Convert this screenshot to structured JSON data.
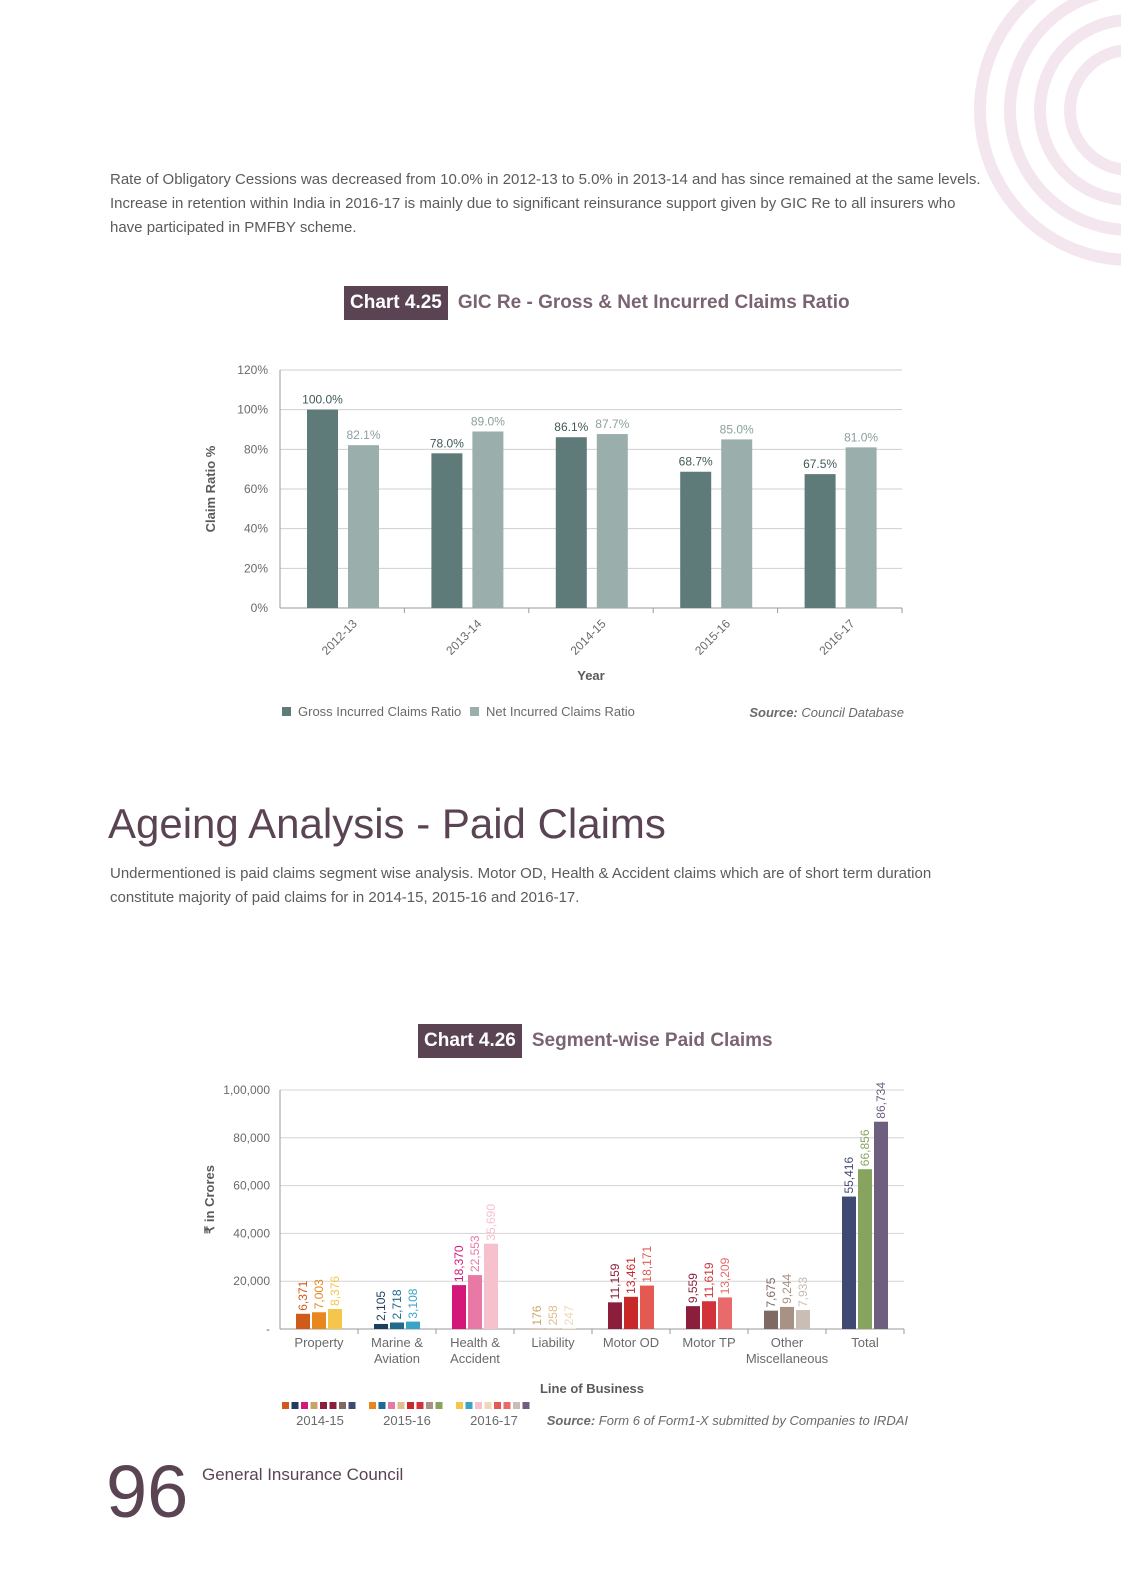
{
  "intro": {
    "line1": "Rate of Obligatory Cessions was decreased from 10.0% in 2012-13 to 5.0% in 2013-14 and has since remained at the same levels.",
    "line2": "Increase in retention within India in 2016-17 is mainly due to significant reinsurance support given by GIC Re to all insurers who",
    "line3": "have participated in PMFBY scheme."
  },
  "chart1": {
    "tag": "Chart 4.25",
    "name": "GIC Re - Gross & Net Incurred Claims Ratio",
    "source_label": "Source:",
    "source_text": "Council Database"
  },
  "section": {
    "title": "Ageing Analysis - Paid Claims",
    "line1": "Undermentioned is paid claims segment wise analysis. Motor OD, Health & Accident claims which are of short term duration",
    "line2": "constitute majority of paid claims for in 2014-15, 2015-16 and 2016-17."
  },
  "chart2": {
    "tag": "Chart 4.26",
    "name": "Segment-wise Paid Claims",
    "source_label": "Source:",
    "source_text": "Form 6 of Form1-X submitted by Companies to IRDAI"
  },
  "footer": {
    "page_number": "96",
    "publisher": "General Insurance Council"
  },
  "chart_data": [
    {
      "type": "bar",
      "title": "GIC Re - Gross & Net Incurred Claims Ratio",
      "xlabel": "Year",
      "ylabel": "Claim Ratio %",
      "ylim": [
        0,
        120
      ],
      "yticks": [
        "0%",
        "20%",
        "40%",
        "60%",
        "80%",
        "100%",
        "120%"
      ],
      "categories": [
        "2012-13",
        "2013-14",
        "2014-15",
        "2015-16",
        "2016-17"
      ],
      "series": [
        {
          "name": "Gross Incurred Claims Ratio",
          "color": "#5e7b7a",
          "values": [
            100.0,
            78.0,
            86.1,
            68.7,
            67.5
          ],
          "labels": [
            "100.0%",
            "78.0%",
            "86.1%",
            "68.7%",
            "67.5%"
          ]
        },
        {
          "name": "Net Incurred Claims Ratio",
          "color": "#9aaeac",
          "values": [
            82.1,
            89.0,
            87.7,
            85.0,
            81.0
          ],
          "labels": [
            "82.1%",
            "89.0%",
            "87.7%",
            "85.0%",
            "81.0%"
          ]
        }
      ],
      "grid": true,
      "legend": "bottom-left"
    },
    {
      "type": "bar",
      "title": "Segment-wise Paid Claims",
      "xlabel": "Line of Business",
      "ylabel": "₹ in Crores",
      "ylim": [
        0,
        100000
      ],
      "yticks": [
        "-",
        "20,000",
        "40,000",
        "60,000",
        "80,000",
        "1,00,000"
      ],
      "categories": [
        "Property",
        "Marine & Aviation",
        "Health & Accident",
        "Liability",
        "Motor OD",
        "Motor TP",
        "Other Miscellaneous",
        "Total"
      ],
      "category_lines": [
        [
          "Property"
        ],
        [
          "Marine &",
          "Aviation"
        ],
        [
          "Health &",
          "Accident"
        ],
        [
          "Liability"
        ],
        [
          "Motor OD"
        ],
        [
          "Motor TP"
        ],
        [
          "Other",
          "Miscellaneous"
        ],
        [
          "Total"
        ]
      ],
      "series": [
        {
          "name": "2014-15",
          "values": [
            6371,
            2105,
            18370,
            176,
            11159,
            9559,
            7675,
            55416
          ],
          "labels": [
            "6,371",
            "2,105",
            "18,370",
            "176",
            "11,159",
            "9,559",
            "7,675",
            "55,416"
          ]
        },
        {
          "name": "2015-16",
          "values": [
            7003,
            2718,
            22553,
            258,
            13461,
            11619,
            9244,
            66856
          ],
          "labels": [
            "7,003",
            "2,718",
            "22,553",
            "258",
            "13,461",
            "11,619",
            "9,244",
            "66,856"
          ]
        },
        {
          "name": "2016-17",
          "values": [
            8376,
            3108,
            35690,
            247,
            18171,
            13209,
            7933,
            86734
          ],
          "labels": [
            "8,376",
            "3,108",
            "35,690",
            "247",
            "18,171",
            "13,209",
            "7,933",
            "86,734"
          ]
        }
      ],
      "colors": [
        [
          "#cf5a1a",
          "#1f3e5e",
          "#d4187a",
          "#c9a46a",
          "#8b1e3a",
          "#8b1e3a",
          "#7e6a62",
          "#3f4a72"
        ],
        [
          "#e7871e",
          "#1f6a8e",
          "#e878a6",
          "#e0bd8c",
          "#c8282a",
          "#d2333a",
          "#a89286",
          "#87a45e"
        ],
        [
          "#f5c64a",
          "#3aa4c6",
          "#f6c0cc",
          "#efd8b8",
          "#e45a52",
          "#e86a6a",
          "#c9bdb5",
          "#6e5f7e"
        ]
      ],
      "grid": true,
      "legend": "bottom-left"
    }
  ]
}
